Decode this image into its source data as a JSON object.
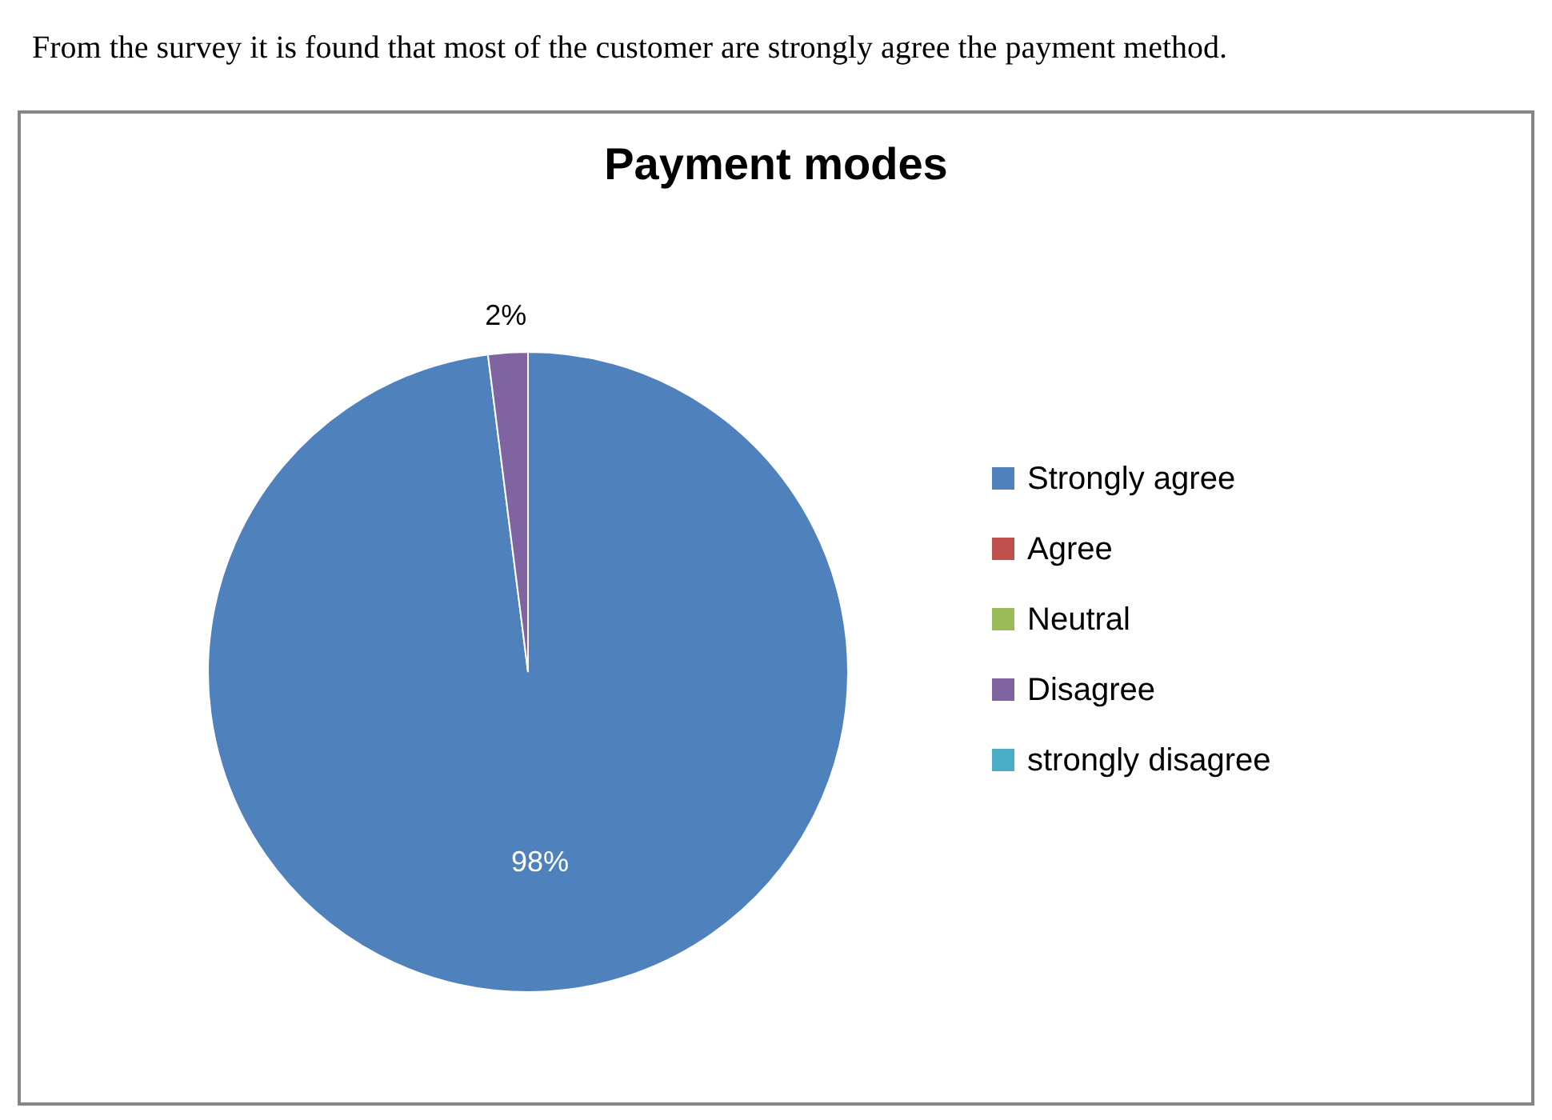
{
  "chart_data": {
    "type": "pie",
    "title": "Payment modes",
    "categories": [
      "Strongly agree",
      "Agree",
      "Neutral",
      "Disagree",
      "strongly disagree"
    ],
    "values": [
      98,
      0,
      0,
      2,
      0
    ],
    "colors": [
      "#4f81bd",
      "#c0504d",
      "#9bbb59",
      "#8064a2",
      "#4bacc6"
    ],
    "value_labels": [
      "98%",
      null,
      null,
      "2%",
      null
    ],
    "legend": "right",
    "annotations": [
      "From the survey it is found that most of the customer are strongly agree the payment method."
    ]
  }
}
